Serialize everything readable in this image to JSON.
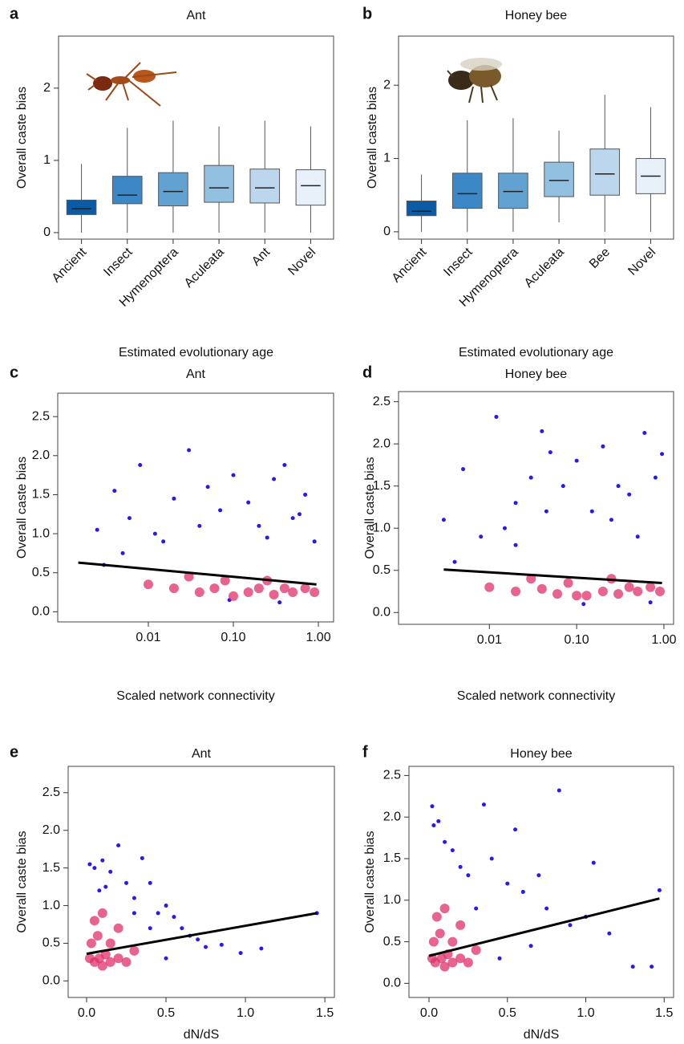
{
  "chart_data": [
    {
      "type": "box",
      "panel_label": "a",
      "title": "Ant",
      "ylabel": "Overall caste bias",
      "xlabel": "Estimated evolutionary age",
      "categories": [
        "Ancient",
        "Insect",
        "Hymenoptera",
        "Aculeata",
        "Ant",
        "Novel"
      ],
      "colors": [
        "#0b5aa5",
        "#3c87c5",
        "#62a2d2",
        "#91c0e1",
        "#bcd7ed",
        "#e8f0f9"
      ],
      "boxes": [
        {
          "min": 0,
          "q1": 0.25,
          "median": 0.33,
          "q3": 0.45,
          "max": 0.95
        },
        {
          "min": 0,
          "q1": 0.4,
          "median": 0.52,
          "q3": 0.78,
          "max": 1.45
        },
        {
          "min": 0,
          "q1": 0.37,
          "median": 0.57,
          "q3": 0.83,
          "max": 1.55
        },
        {
          "min": 0,
          "q1": 0.42,
          "median": 0.62,
          "q3": 0.93,
          "max": 1.47
        },
        {
          "min": 0,
          "q1": 0.41,
          "median": 0.62,
          "q3": 0.88,
          "max": 1.55
        },
        {
          "min": 0,
          "q1": 0.38,
          "median": 0.65,
          "q3": 0.87,
          "max": 1.47
        }
      ],
      "ylim": [
        -0.09,
        2.72
      ],
      "yticks": [
        0,
        1,
        2
      ]
    },
    {
      "type": "box",
      "panel_label": "b",
      "title": "Honey bee",
      "ylabel": "Overall caste bias",
      "xlabel": "Estimated evolutionary age",
      "categories": [
        "Ancient",
        "Insect",
        "Hymenoptera",
        "Aculeata",
        "Bee",
        "Novel"
      ],
      "colors": [
        "#0b5aa5",
        "#3c87c5",
        "#62a2d2",
        "#91c0e1",
        "#bcd7ed",
        "#e8f0f9"
      ],
      "boxes": [
        {
          "min": 0,
          "q1": 0.22,
          "median": 0.28,
          "q3": 0.42,
          "max": 0.78
        },
        {
          "min": 0,
          "q1": 0.32,
          "median": 0.52,
          "q3": 0.8,
          "max": 1.52
        },
        {
          "min": 0,
          "q1": 0.32,
          "median": 0.55,
          "q3": 0.8,
          "max": 1.55
        },
        {
          "min": 0.13,
          "q1": 0.48,
          "median": 0.7,
          "q3": 0.95,
          "max": 1.38
        },
        {
          "min": 0,
          "q1": 0.5,
          "median": 0.79,
          "q3": 1.13,
          "max": 1.87
        },
        {
          "min": 0,
          "q1": 0.52,
          "median": 0.76,
          "q3": 1.0,
          "max": 1.7
        }
      ],
      "ylim": [
        -0.1,
        2.67
      ],
      "yticks": [
        0,
        1,
        2
      ]
    },
    {
      "type": "scatter",
      "panel_label": "c",
      "title": "Ant",
      "ylabel": "Overall caste bias",
      "xlabel": "Scaled network connectivity",
      "xscale": "log",
      "xlim": [
        0.00086,
        1.51
      ],
      "xticks": [
        0.01,
        {
          "value": 0.1,
          "label": "0.10"
        },
        {
          "value": 1,
          "label": "1.00"
        }
      ],
      "ylim": [
        -0.13,
        2.8
      ],
      "yticks": [
        {
          "value": 0,
          "label": "0.0"
        },
        {
          "value": 0.5,
          "label": "0.5"
        },
        {
          "value": 1,
          "label": "1.0"
        },
        {
          "value": 1.5,
          "label": "1.5"
        },
        {
          "value": 2,
          "label": "2.0"
        },
        {
          "value": 2.5,
          "label": "2.5"
        }
      ],
      "series": [
        {
          "color": "#2a18f0",
          "x": [
            0.0025,
            0.004,
            0.006,
            0.008,
            0.012,
            0.02,
            0.03,
            0.05,
            0.07,
            0.1,
            0.15,
            0.2,
            0.3,
            0.4,
            0.5,
            0.7,
            0.9,
            0.003,
            0.015,
            0.04,
            0.25,
            0.6,
            0.09,
            0.35,
            0.005
          ],
          "values": [
            1.05,
            1.55,
            1.2,
            1.88,
            1.0,
            1.45,
            2.07,
            1.6,
            1.3,
            1.75,
            1.4,
            1.1,
            1.7,
            1.88,
            1.2,
            1.5,
            0.9,
            0.6,
            0.9,
            1.1,
            0.95,
            1.25,
            0.15,
            0.12,
            0.75
          ]
        },
        {
          "color": "#e0306a",
          "x": [
            0.01,
            0.02,
            0.04,
            0.06,
            0.1,
            0.15,
            0.2,
            0.3,
            0.4,
            0.5,
            0.7,
            0.9,
            0.03,
            0.08,
            0.25
          ],
          "values": [
            0.35,
            0.3,
            0.25,
            0.3,
            0.2,
            0.25,
            0.3,
            0.22,
            0.3,
            0.25,
            0.3,
            0.25,
            0.45,
            0.4,
            0.4
          ]
        }
      ],
      "fit": {
        "color": "#000000",
        "x": [
          0.0015,
          0.95
        ],
        "values": [
          0.63,
          0.35
        ]
      }
    },
    {
      "type": "scatter",
      "panel_label": "d",
      "title": "Honey bee",
      "ylabel": "Overall caste bias",
      "xlabel": "Scaled network connectivity",
      "xscale": "log",
      "xlim": [
        0.00091,
        1.29
      ],
      "xticks": [
        0.01,
        {
          "value": 0.1,
          "label": "0.10"
        },
        {
          "value": 1,
          "label": "1.00"
        }
      ],
      "ylim": [
        -0.14,
        2.62
      ],
      "yticks": [
        {
          "value": 0,
          "label": "0.0"
        },
        {
          "value": 0.5,
          "label": "0.5"
        },
        {
          "value": 1,
          "label": "1.0"
        },
        {
          "value": 1.5,
          "label": "1.5"
        },
        {
          "value": 2,
          "label": "2.0"
        },
        {
          "value": 2.5,
          "label": "2.5"
        }
      ],
      "series": [
        {
          "color": "#2a18f0",
          "x": [
            0.003,
            0.005,
            0.008,
            0.012,
            0.02,
            0.03,
            0.04,
            0.05,
            0.07,
            0.1,
            0.15,
            0.2,
            0.3,
            0.4,
            0.6,
            0.8,
            0.95,
            0.015,
            0.045,
            0.25,
            0.5,
            0.004,
            0.12,
            0.7,
            0.02
          ],
          "values": [
            1.1,
            1.7,
            0.9,
            2.32,
            1.3,
            1.6,
            2.15,
            1.9,
            1.5,
            1.8,
            1.2,
            1.97,
            1.5,
            1.4,
            2.13,
            1.6,
            1.88,
            1.0,
            1.2,
            1.1,
            0.9,
            0.6,
            0.1,
            0.12,
            0.8
          ]
        },
        {
          "color": "#e0306a",
          "x": [
            0.01,
            0.02,
            0.04,
            0.06,
            0.1,
            0.13,
            0.2,
            0.3,
            0.4,
            0.5,
            0.7,
            0.9,
            0.03,
            0.08,
            0.25
          ],
          "values": [
            0.3,
            0.25,
            0.28,
            0.22,
            0.2,
            0.2,
            0.25,
            0.22,
            0.3,
            0.25,
            0.3,
            0.25,
            0.4,
            0.35,
            0.4
          ]
        }
      ],
      "fit": {
        "color": "#000000",
        "x": [
          0.003,
          0.95
        ],
        "values": [
          0.51,
          0.35
        ]
      }
    },
    {
      "type": "scatter",
      "panel_label": "e",
      "title": "Ant",
      "ylabel": "Overall caste bias",
      "xlabel": "dN/dS",
      "xscale": "linear",
      "xlim": [
        -0.116,
        1.56
      ],
      "xticks": [
        {
          "value": 0,
          "label": "0.0"
        },
        {
          "value": 0.5,
          "label": "0.5"
        },
        {
          "value": 1,
          "label": "1.0"
        },
        {
          "value": 1.5,
          "label": "1.5"
        }
      ],
      "ylim": [
        -0.22,
        2.85
      ],
      "yticks": [
        {
          "value": 0,
          "label": "0.0"
        },
        {
          "value": 0.5,
          "label": "0.5"
        },
        {
          "value": 1,
          "label": "1.0"
        },
        {
          "value": 1.5,
          "label": "1.5"
        },
        {
          "value": 2,
          "label": "2.0"
        },
        {
          "value": 2.5,
          "label": "2.5"
        }
      ],
      "series": [
        {
          "color": "#2a18f0",
          "x": [
            0.02,
            0.05,
            0.1,
            0.15,
            0.2,
            0.25,
            0.3,
            0.35,
            0.4,
            0.45,
            0.5,
            0.55,
            0.6,
            0.65,
            0.7,
            0.75,
            0.85,
            0.97,
            1.1,
            1.45,
            0.12,
            0.3,
            0.4,
            0.5,
            0.08
          ],
          "values": [
            1.55,
            1.5,
            1.6,
            1.45,
            1.8,
            1.3,
            1.1,
            1.63,
            1.3,
            0.9,
            1.0,
            0.85,
            0.7,
            0.6,
            0.55,
            0.45,
            0.48,
            0.37,
            0.43,
            0.9,
            1.25,
            0.9,
            0.7,
            0.3,
            1.2
          ]
        },
        {
          "color": "#e0306a",
          "x": [
            0.02,
            0.05,
            0.08,
            0.1,
            0.12,
            0.15,
            0.2,
            0.25,
            0.03,
            0.07,
            0.15,
            0.3,
            0.05,
            0.1,
            0.2
          ],
          "values": [
            0.3,
            0.25,
            0.3,
            0.2,
            0.35,
            0.25,
            0.3,
            0.25,
            0.5,
            0.6,
            0.5,
            0.4,
            0.8,
            0.9,
            0.7
          ]
        }
      ],
      "fit": {
        "color": "#000000",
        "x": [
          0,
          1.45
        ],
        "values": [
          0.36,
          0.9
        ]
      }
    },
    {
      "type": "scatter",
      "panel_label": "f",
      "title": "Honey bee",
      "ylabel": "Overall caste bias",
      "xlabel": "dN/dS",
      "xscale": "linear",
      "xlim": [
        -0.128,
        1.56
      ],
      "xticks": [
        {
          "value": 0,
          "label": "0.0"
        },
        {
          "value": 0.5,
          "label": "0.5"
        },
        {
          "value": 1,
          "label": "1.0"
        },
        {
          "value": 1.5,
          "label": "1.5"
        }
      ],
      "ylim": [
        -0.17,
        2.61
      ],
      "yticks": [
        {
          "value": 0,
          "label": "0.0"
        },
        {
          "value": 0.5,
          "label": "0.5"
        },
        {
          "value": 1,
          "label": "1.0"
        },
        {
          "value": 1.5,
          "label": "1.5"
        },
        {
          "value": 2,
          "label": "2.0"
        },
        {
          "value": 2.5,
          "label": "2.5"
        }
      ],
      "series": [
        {
          "color": "#2a18f0",
          "x": [
            0.02,
            0.03,
            0.06,
            0.1,
            0.15,
            0.2,
            0.25,
            0.35,
            0.4,
            0.5,
            0.55,
            0.6,
            0.7,
            0.75,
            0.83,
            0.9,
            1.0,
            1.05,
            1.15,
            1.3,
            1.42,
            1.47,
            0.45,
            0.3,
            0.65
          ],
          "values": [
            2.13,
            1.9,
            1.95,
            1.7,
            1.6,
            1.4,
            1.3,
            2.15,
            1.5,
            1.2,
            1.85,
            1.1,
            1.3,
            0.9,
            2.32,
            0.7,
            0.8,
            1.45,
            0.6,
            0.2,
            0.2,
            1.12,
            0.3,
            0.9,
            0.45
          ]
        },
        {
          "color": "#e0306a",
          "x": [
            0.02,
            0.04,
            0.08,
            0.1,
            0.12,
            0.15,
            0.2,
            0.25,
            0.03,
            0.07,
            0.15,
            0.3,
            0.05,
            0.1,
            0.2
          ],
          "values": [
            0.3,
            0.25,
            0.3,
            0.2,
            0.35,
            0.25,
            0.3,
            0.25,
            0.5,
            0.6,
            0.5,
            0.4,
            0.8,
            0.9,
            0.7
          ]
        }
      ],
      "fit": {
        "color": "#000000",
        "x": [
          0,
          1.47
        ],
        "values": [
          0.33,
          1.02
        ]
      }
    }
  ]
}
